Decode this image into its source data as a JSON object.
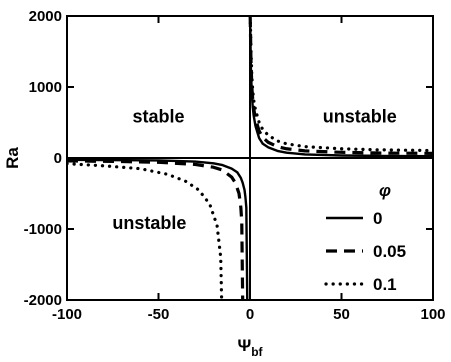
{
  "chart_data": {
    "type": "line",
    "title": "",
    "xlabel": "Ψ",
    "xlabel_sub": "bf",
    "ylabel": "Ra",
    "xlim": [
      -100,
      100
    ],
    "ylim": [
      -2000,
      2000
    ],
    "xticks": [
      -100,
      -50,
      0,
      50,
      100
    ],
    "yticks": [
      -2000,
      -1000,
      0,
      1000,
      2000
    ],
    "grid": false,
    "zero_lines": true,
    "legend": {
      "title": "φ",
      "placement": "lower-right"
    },
    "annotations": [
      {
        "text": "stable",
        "x": -50,
        "y": 500
      },
      {
        "text": "unstable",
        "x": 60,
        "y": 500
      },
      {
        "text": "unstable",
        "x": -55,
        "y": -1000
      }
    ],
    "series": [
      {
        "name": "0",
        "style": "solid",
        "x": [
          0.05,
          0.1,
          0.2,
          0.35,
          0.5,
          1,
          1.5,
          2,
          3,
          5,
          7,
          10,
          15,
          20,
          30,
          50,
          70,
          100
        ],
        "y": [
          2000,
          1950,
          1750,
          1500,
          1250,
          900,
          720,
          600,
          450,
          280,
          200,
          150,
          100,
          75,
          50,
          35,
          30,
          25
        ],
        "x2": [
          -100,
          -70,
          -50,
          -30,
          -20,
          -15,
          -10,
          -7,
          -5,
          -4,
          -3,
          -2.5,
          -2,
          -1.5
        ],
        "y2": [
          -25,
          -30,
          -35,
          -50,
          -75,
          -100,
          -150,
          -200,
          -280,
          -350,
          -450,
          -550,
          -700,
          -2000
        ]
      },
      {
        "name": "0.05",
        "style": "dashed",
        "x": [
          0.1,
          0.2,
          0.35,
          0.5,
          1,
          1.5,
          2,
          3,
          5,
          7,
          10,
          15,
          20,
          30,
          50,
          70,
          100
        ],
        "y": [
          2000,
          1850,
          1650,
          1400,
          1000,
          820,
          700,
          550,
          380,
          290,
          220,
          160,
          130,
          100,
          80,
          70,
          65
        ],
        "x2": [
          -100,
          -70,
          -50,
          -30,
          -20,
          -15,
          -10,
          -8,
          -6,
          -5,
          -4.5,
          -4
        ],
        "y2": [
          -40,
          -50,
          -60,
          -90,
          -130,
          -170,
          -270,
          -350,
          -500,
          -700,
          -900,
          -2000
        ]
      },
      {
        "name": "0.1",
        "style": "dotted",
        "x": [
          0.1,
          0.2,
          0.35,
          0.5,
          1,
          1.5,
          2,
          3,
          5,
          7,
          10,
          15,
          20,
          30,
          50,
          70,
          100
        ],
        "y": [
          2000,
          1900,
          1750,
          1550,
          1150,
          950,
          820,
          680,
          500,
          400,
          320,
          240,
          200,
          160,
          130,
          115,
          105
        ],
        "x2": [
          -100,
          -80,
          -60,
          -45,
          -35,
          -28,
          -22,
          -18,
          -16,
          -15.5
        ],
        "y2": [
          -80,
          -110,
          -150,
          -230,
          -330,
          -450,
          -650,
          -950,
          -1400,
          -2000
        ]
      }
    ]
  }
}
